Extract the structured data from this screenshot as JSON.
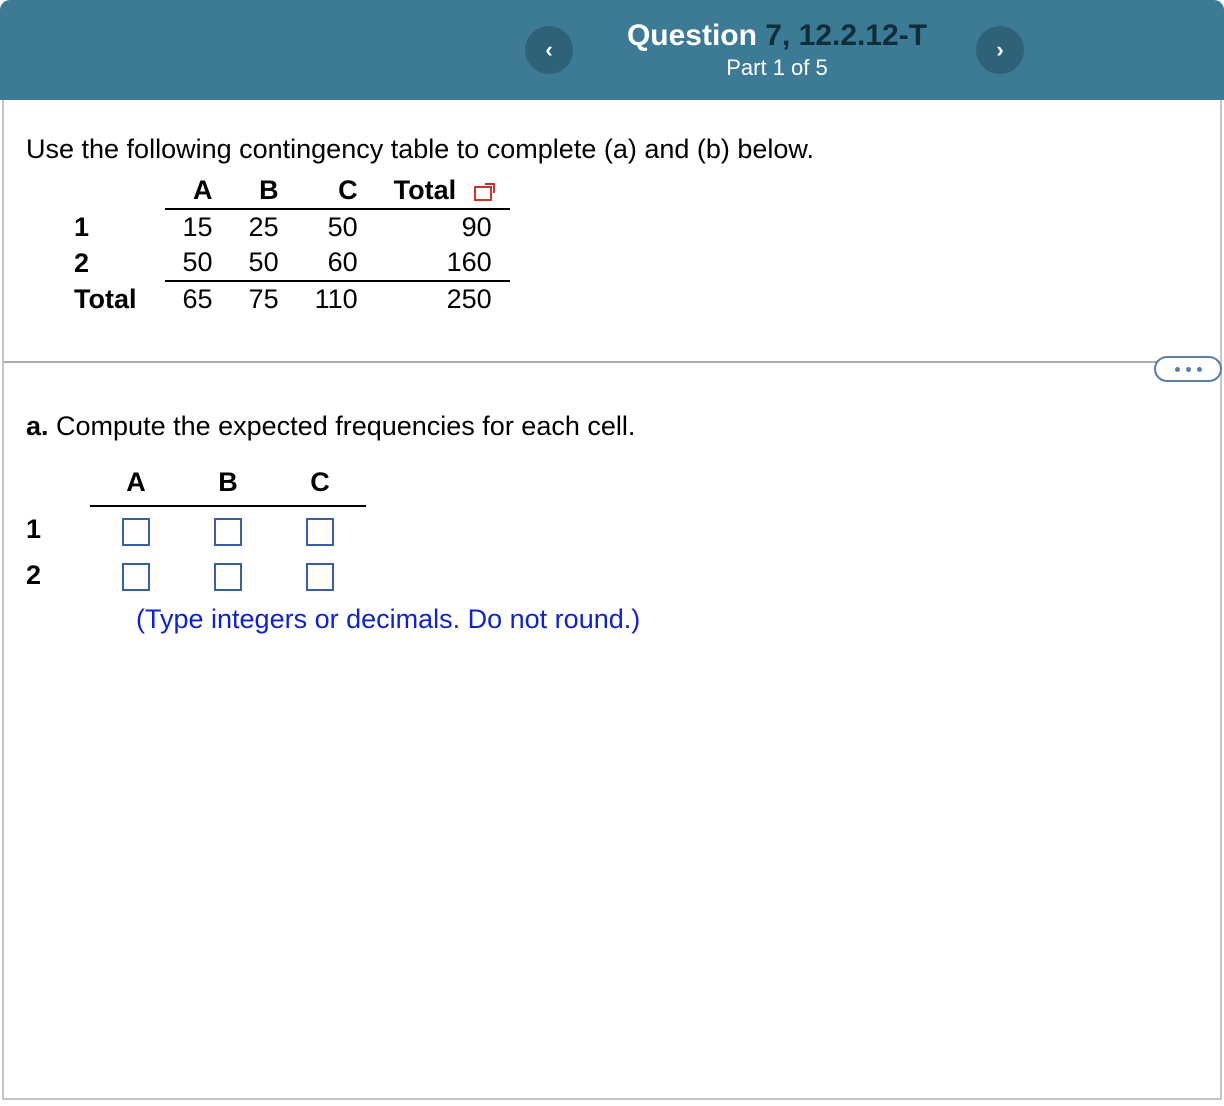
{
  "header": {
    "prev_icon": "‹",
    "next_icon": "›",
    "question_label": "Question ",
    "question_number": "7, 12.2.12-T",
    "part_text": "Part 1 of 5",
    "colors": {
      "bg": "#3c7a95",
      "btn": "#2f6178",
      "text": "#ffffff"
    }
  },
  "intro_text": "Use the following contingency table to complete (a) and (b) below.",
  "contingency": {
    "columns": [
      "A",
      "B",
      "C",
      "Total"
    ],
    "rows": [
      {
        "label": "1",
        "cells": [
          "15",
          "25",
          "50",
          "90"
        ]
      },
      {
        "label": "2",
        "cells": [
          "50",
          "50",
          "60",
          "160"
        ]
      },
      {
        "label": "Total",
        "cells": [
          "65",
          "75",
          "110",
          "250"
        ]
      }
    ]
  },
  "part_a": {
    "label": "a.",
    "text": " Compute the expected frequencies for each cell.",
    "columns": [
      "A",
      "B",
      "C"
    ],
    "rows": [
      "1",
      "2"
    ],
    "hint": "(Type integers or decimals. Do not round.)",
    "hint_color": "#1023c8",
    "input_border": "#385fa2"
  },
  "more_dots": "•••"
}
